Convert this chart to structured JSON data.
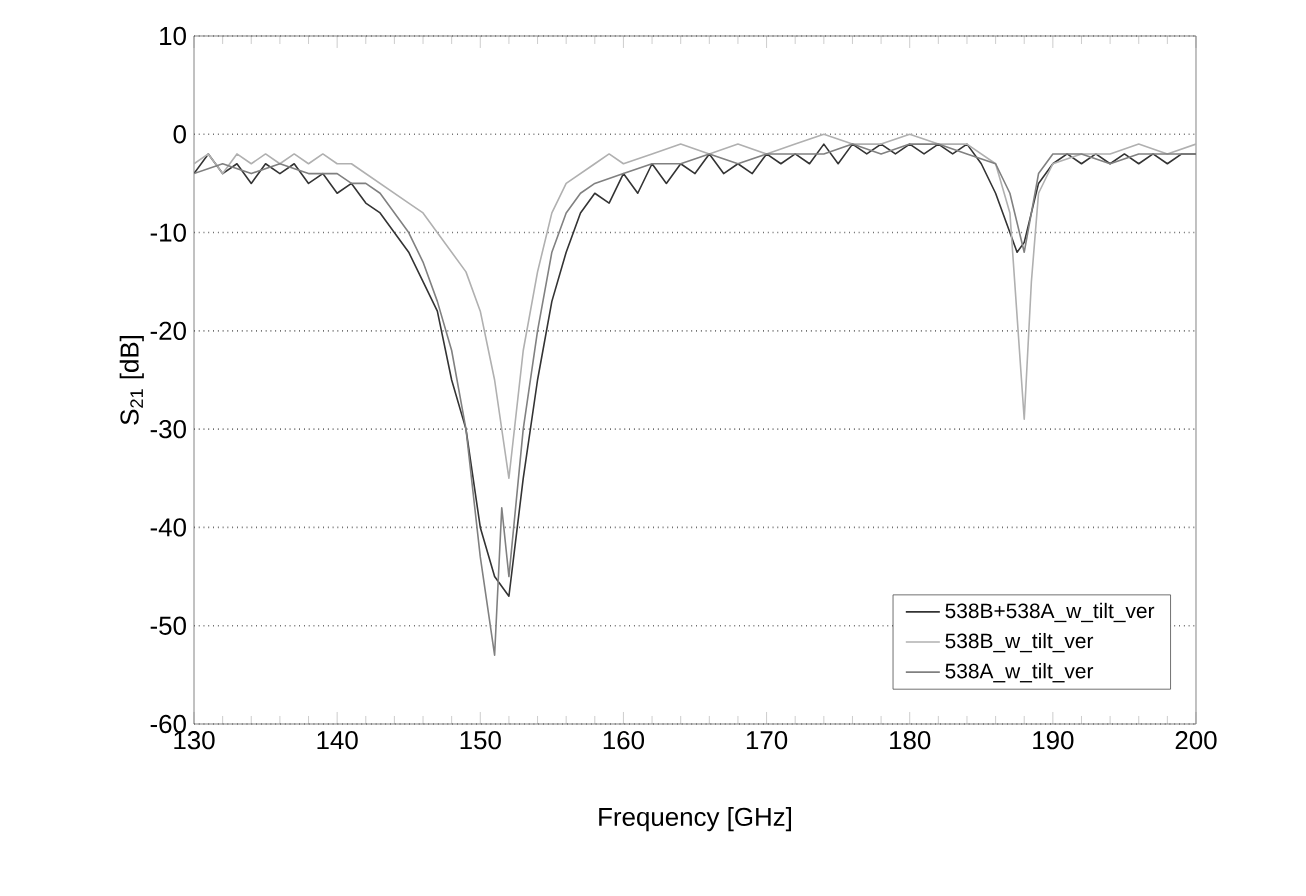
{
  "chart_data": {
    "type": "line",
    "xlabel": "Frequency [GHz]",
    "ylabel": "S$_{21}$ [dB]",
    "xlim": [
      130,
      200
    ],
    "ylim": [
      -60,
      10
    ],
    "xticks": [
      130,
      140,
      150,
      160,
      170,
      180,
      190,
      200
    ],
    "yticks": [
      -60,
      -50,
      -40,
      -30,
      -20,
      -10,
      0,
      10
    ],
    "grid": "y",
    "legend": "bottom right",
    "series": [
      {
        "name": "538B+538A_w_tilt_ver",
        "color": "#333333",
        "x": [
          130,
          131,
          132,
          133,
          134,
          135,
          136,
          137,
          138,
          139,
          140,
          141,
          142,
          143,
          144,
          145,
          146,
          147,
          148,
          149,
          150,
          151,
          152,
          153,
          154,
          155,
          156,
          157,
          158,
          159,
          160,
          161,
          162,
          163,
          164,
          165,
          166,
          167,
          168,
          169,
          170,
          171,
          172,
          173,
          174,
          175,
          176,
          177,
          178,
          179,
          180,
          181,
          182,
          183,
          184,
          185,
          186,
          187,
          187.5,
          188,
          189,
          190,
          191,
          192,
          193,
          194,
          195,
          196,
          197,
          198,
          199,
          200
        ],
        "values": [
          -4,
          -2,
          -4,
          -3,
          -5,
          -3,
          -4,
          -3,
          -5,
          -4,
          -6,
          -5,
          -7,
          -8,
          -10,
          -12,
          -15,
          -18,
          -25,
          -30,
          -40,
          -45,
          -47,
          -35,
          -25,
          -17,
          -12,
          -8,
          -6,
          -7,
          -4,
          -6,
          -3,
          -5,
          -3,
          -4,
          -2,
          -4,
          -3,
          -4,
          -2,
          -3,
          -2,
          -3,
          -1,
          -3,
          -1,
          -2,
          -1,
          -2,
          -1,
          -2,
          -1,
          -2,
          -1,
          -3,
          -6,
          -10,
          -12,
          -11,
          -5,
          -3,
          -2,
          -3,
          -2,
          -3,
          -2,
          -3,
          -2,
          -3,
          -2,
          -2
        ]
      },
      {
        "name": "538B_w_tilt_ver",
        "color": "#b0b0b0",
        "x": [
          130,
          131,
          132,
          133,
          134,
          135,
          136,
          137,
          138,
          139,
          140,
          141,
          142,
          143,
          144,
          145,
          146,
          147,
          148,
          149,
          150,
          151,
          152,
          153,
          154,
          155,
          156,
          157,
          158,
          159,
          160,
          162,
          164,
          166,
          168,
          170,
          172,
          174,
          176,
          178,
          180,
          182,
          184,
          186,
          187,
          188,
          188.5,
          189,
          190,
          192,
          194,
          196,
          198,
          200
        ],
        "values": [
          -3,
          -2,
          -4,
          -2,
          -3,
          -2,
          -3,
          -2,
          -3,
          -2,
          -3,
          -3,
          -4,
          -5,
          -6,
          -7,
          -8,
          -10,
          -12,
          -14,
          -18,
          -25,
          -35,
          -22,
          -14,
          -8,
          -5,
          -4,
          -3,
          -2,
          -3,
          -2,
          -1,
          -2,
          -1,
          -2,
          -1,
          0,
          -1,
          -1,
          0,
          -1,
          -1,
          -3,
          -8,
          -29,
          -15,
          -6,
          -3,
          -2,
          -2,
          -1,
          -2,
          -1
        ]
      },
      {
        "name": "538A_w_tilt_ver",
        "color": "#808080",
        "x": [
          130,
          132,
          134,
          136,
          138,
          140,
          141,
          142,
          143,
          144,
          145,
          146,
          147,
          148,
          149,
          150,
          151,
          151.5,
          152,
          153,
          154,
          155,
          156,
          157,
          158,
          160,
          162,
          164,
          166,
          168,
          170,
          172,
          174,
          176,
          178,
          180,
          182,
          184,
          186,
          187,
          188,
          189,
          190,
          192,
          194,
          196,
          198,
          200
        ],
        "values": [
          -4,
          -3,
          -4,
          -3,
          -4,
          -4,
          -5,
          -5,
          -6,
          -8,
          -10,
          -13,
          -17,
          -22,
          -30,
          -43,
          -53,
          -38,
          -45,
          -30,
          -20,
          -12,
          -8,
          -6,
          -5,
          -4,
          -3,
          -3,
          -2,
          -3,
          -2,
          -2,
          -2,
          -1,
          -2,
          -1,
          -1,
          -2,
          -3,
          -6,
          -12,
          -4,
          -2,
          -2,
          -3,
          -2,
          -2,
          -2
        ]
      }
    ]
  }
}
